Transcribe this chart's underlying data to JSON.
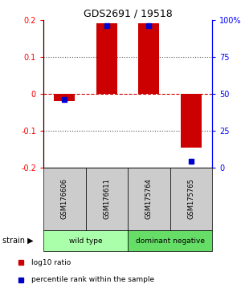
{
  "title": "GDS2691 / 19518",
  "samples": [
    "GSM176606",
    "GSM176611",
    "GSM175764",
    "GSM175765"
  ],
  "log10_ratio": [
    -0.02,
    0.19,
    0.19,
    -0.145
  ],
  "percentile_rank": [
    46,
    96,
    96,
    4
  ],
  "ylim_left": [
    -0.2,
    0.2
  ],
  "ylim_right": [
    0,
    100
  ],
  "yticks_left": [
    -0.2,
    -0.1,
    0.0,
    0.1,
    0.2
  ],
  "ytick_labels_left": [
    "-0.2",
    "-0.1",
    "0",
    "0.1",
    "0.2"
  ],
  "yticks_right": [
    0,
    25,
    50,
    75,
    100
  ],
  "ytick_labels_right": [
    "0",
    "25",
    "50",
    "75",
    "100%"
  ],
  "bar_color": "#cc0000",
  "dot_color": "#0000cc",
  "zero_line_color": "#cc0000",
  "dotted_line_color": "#555555",
  "groups": [
    {
      "label": "wild type",
      "start": 0,
      "end": 2,
      "color": "#aaffaa"
    },
    {
      "label": "dominant negative",
      "start": 2,
      "end": 4,
      "color": "#66dd66"
    }
  ],
  "group_label": "strain",
  "sample_box_color": "#cccccc",
  "background_color": "#ffffff",
  "legend_items": [
    {
      "label": "log10 ratio",
      "color": "#cc0000"
    },
    {
      "label": "percentile rank within the sample",
      "color": "#0000cc"
    }
  ]
}
